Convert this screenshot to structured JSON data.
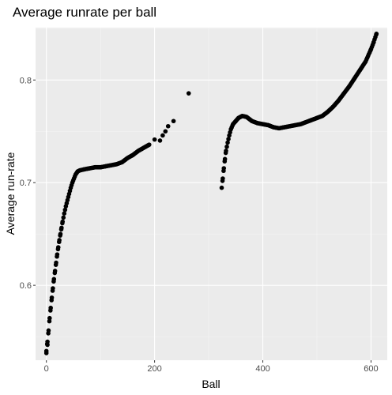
{
  "chart_data": {
    "type": "scatter",
    "title": "Average runrate per ball",
    "xlabel": "Ball",
    "ylabel": "Average run-rate",
    "xlim": [
      -20,
      630
    ],
    "ylim": [
      0.527,
      0.851
    ],
    "x_ticks": [
      0,
      200,
      400,
      600
    ],
    "y_ticks": [
      0.6,
      0.7,
      0.8
    ],
    "x_tick_labels": [
      "0",
      "200",
      "400",
      "600"
    ],
    "y_tick_labels": [
      "0.6",
      "0.7",
      "0.8"
    ],
    "grid": true,
    "legend": "none",
    "colors": {
      "panel_background": "#ebebeb",
      "grid_major": "#ffffff",
      "grid_minor": "#f5f5f5",
      "points": "#000000"
    },
    "segments": [
      {
        "anchors": [
          [
            0,
            0.536
          ],
          [
            2,
            0.545
          ],
          [
            4,
            0.556
          ],
          [
            6,
            0.568
          ],
          [
            8,
            0.578
          ],
          [
            10,
            0.588
          ],
          [
            12,
            0.597
          ],
          [
            14,
            0.606
          ],
          [
            16,
            0.614
          ],
          [
            18,
            0.622
          ],
          [
            20,
            0.63
          ],
          [
            22,
            0.637
          ],
          [
            24,
            0.644
          ],
          [
            26,
            0.65
          ],
          [
            28,
            0.656
          ],
          [
            30,
            0.662
          ],
          [
            33,
            0.67
          ],
          [
            36,
            0.677
          ],
          [
            39,
            0.683
          ],
          [
            42,
            0.689
          ],
          [
            45,
            0.695
          ],
          [
            48,
            0.7
          ],
          [
            51,
            0.704
          ],
          [
            54,
            0.708
          ],
          [
            58,
            0.711
          ],
          [
            62,
            0.712
          ],
          [
            70,
            0.713
          ],
          [
            80,
            0.714
          ],
          [
            90,
            0.715
          ],
          [
            100,
            0.715
          ],
          [
            110,
            0.716
          ],
          [
            120,
            0.717
          ],
          [
            130,
            0.718
          ],
          [
            140,
            0.72
          ],
          [
            150,
            0.724
          ],
          [
            160,
            0.727
          ],
          [
            170,
            0.731
          ],
          [
            180,
            0.734
          ],
          [
            190,
            0.737
          ]
        ],
        "step": 1.5
      },
      {
        "points": [
          [
            0,
            0.534
          ],
          [
            2,
            0.542
          ],
          [
            200,
            0.742
          ],
          [
            210,
            0.741
          ],
          [
            215,
            0.746
          ],
          [
            220,
            0.75
          ],
          [
            225,
            0.755
          ],
          [
            235,
            0.76
          ],
          [
            263,
            0.787
          ]
        ]
      },
      {
        "anchors": [
          [
            324,
            0.695
          ],
          [
            326,
            0.704
          ],
          [
            328,
            0.714
          ],
          [
            330,
            0.723
          ],
          [
            332,
            0.731
          ],
          [
            335,
            0.739
          ],
          [
            338,
            0.746
          ],
          [
            341,
            0.752
          ],
          [
            345,
            0.757
          ],
          [
            350,
            0.76
          ],
          [
            355,
            0.763
          ],
          [
            362,
            0.765
          ],
          [
            370,
            0.764
          ],
          [
            380,
            0.76
          ],
          [
            390,
            0.758
          ],
          [
            400,
            0.757
          ],
          [
            410,
            0.756
          ],
          [
            420,
            0.754
          ],
          [
            430,
            0.753
          ],
          [
            440,
            0.754
          ],
          [
            450,
            0.755
          ],
          [
            460,
            0.756
          ],
          [
            470,
            0.757
          ],
          [
            480,
            0.759
          ],
          [
            490,
            0.761
          ],
          [
            500,
            0.763
          ],
          [
            510,
            0.765
          ],
          [
            520,
            0.769
          ],
          [
            530,
            0.774
          ],
          [
            540,
            0.78
          ],
          [
            550,
            0.787
          ],
          [
            560,
            0.794
          ],
          [
            570,
            0.802
          ],
          [
            580,
            0.81
          ],
          [
            590,
            0.818
          ],
          [
            600,
            0.83
          ],
          [
            605,
            0.837
          ],
          [
            610,
            0.845
          ]
        ],
        "step": 1.5
      }
    ]
  }
}
